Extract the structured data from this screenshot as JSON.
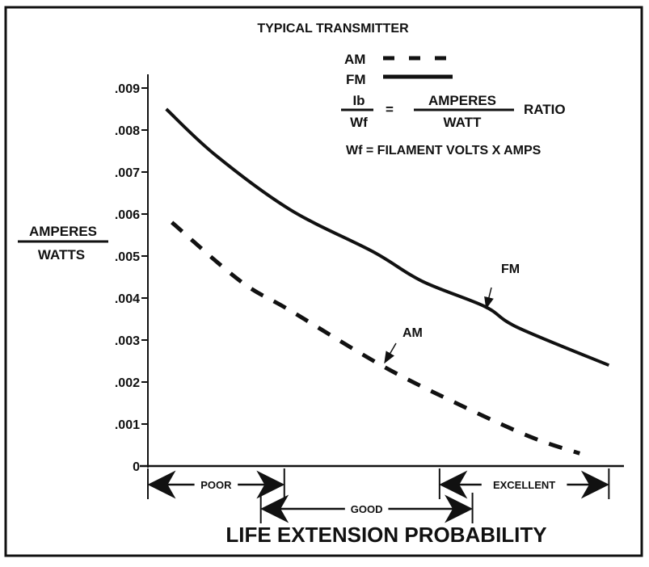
{
  "chart_data": {
    "type": "line",
    "title": "TYPICAL TRANSMITTER",
    "xlabel": "LIFE EXTENSION PROBABILITY",
    "ylabel_numerator": "AMPERES",
    "ylabel_denominator": "WATTS",
    "xlim": [
      0,
      1
    ],
    "x_scale": "unlabeled",
    "ylim": [
      0,
      0.0095
    ],
    "yticks": [
      0,
      0.001,
      0.002,
      0.003,
      0.004,
      0.005,
      0.006,
      0.007,
      0.008,
      0.009
    ],
    "ytick_labels": [
      "0",
      ".001",
      ".002",
      ".003",
      ".004",
      ".005",
      ".006",
      ".007",
      ".008",
      ".009"
    ],
    "grid": false,
    "legend_placement": "top-right",
    "series": [
      {
        "name": "AM",
        "style": "dashed",
        "color": "#111111",
        "x": [
          0.051,
          0.197,
          0.303,
          0.496,
          0.655,
          0.812,
          0.918
        ],
        "y": [
          0.0058,
          0.0044,
          0.0037,
          0.0024,
          0.0015,
          0.0007,
          0.0003
        ]
      },
      {
        "name": "FM",
        "style": "solid",
        "color": "#111111",
        "x": [
          0.039,
          0.144,
          0.303,
          0.479,
          0.583,
          0.716,
          0.786,
          0.98
        ],
        "y": [
          0.0085,
          0.0074,
          0.0061,
          0.0051,
          0.0044,
          0.0038,
          0.0033,
          0.0024
        ]
      }
    ],
    "annotations": [
      {
        "text": "FM",
        "points_to": "FM",
        "x": 0.716,
        "y": 0.0038
      },
      {
        "text": "AM",
        "points_to": "AM",
        "x": 0.5,
        "y": 0.0025
      }
    ],
    "ranges": [
      {
        "label": "POOR",
        "from": 0.0,
        "to": 0.29
      },
      {
        "label": "GOOD",
        "from": 0.24,
        "to": 0.69
      },
      {
        "label": "EXCELLENT",
        "from": 0.62,
        "to": 0.98
      }
    ],
    "legend": {
      "am_label": "AM",
      "fm_label": "FM",
      "formula_lhs_num": "Ib",
      "formula_lhs_den": "Wf",
      "formula_eq": "=",
      "formula_rhs_num": "AMPERES",
      "formula_rhs_den": "WATT",
      "formula_suffix": "RATIO",
      "note": "Wf = FILAMENT VOLTS X AMPS"
    }
  }
}
